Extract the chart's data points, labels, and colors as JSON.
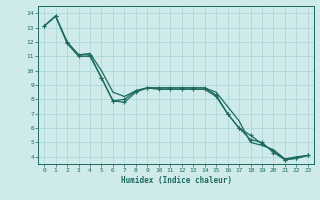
{
  "xlabel": "Humidex (Indice chaleur)",
  "bg_color": "#ceeaea",
  "line_color": "#1e6b5e",
  "grid_color": "#a8d4d4",
  "xlim": [
    -0.5,
    23.5
  ],
  "ylim": [
    3.5,
    14.5
  ],
  "xticks": [
    0,
    1,
    2,
    3,
    4,
    5,
    6,
    7,
    8,
    9,
    10,
    11,
    12,
    13,
    14,
    15,
    16,
    17,
    18,
    19,
    20,
    21,
    22,
    23
  ],
  "yticks": [
    4,
    5,
    6,
    7,
    8,
    9,
    10,
    11,
    12,
    13,
    14
  ],
  "line1_x": [
    0,
    1,
    2,
    3,
    4,
    5,
    6,
    7,
    8,
    9,
    10,
    11,
    12,
    13,
    14,
    15,
    16,
    17,
    18,
    19,
    20,
    21,
    22,
    23
  ],
  "line1_y": [
    13.1,
    13.8,
    12.0,
    11.1,
    11.1,
    9.5,
    7.9,
    7.8,
    8.5,
    8.8,
    8.8,
    8.8,
    8.8,
    8.8,
    8.8,
    8.3,
    7.0,
    6.0,
    5.5,
    4.9,
    4.4,
    3.8,
    3.9,
    4.1
  ],
  "line2_x": [
    0,
    1,
    2,
    3,
    4,
    5,
    6,
    7,
    8,
    9,
    10,
    11,
    12,
    13,
    14,
    15,
    16,
    17,
    18,
    19,
    20,
    21,
    22,
    23
  ],
  "line2_y": [
    13.1,
    13.8,
    11.9,
    11.0,
    11.0,
    9.5,
    7.9,
    8.0,
    8.6,
    8.8,
    8.7,
    8.7,
    8.7,
    8.7,
    8.7,
    8.2,
    7.0,
    6.0,
    5.2,
    5.0,
    4.3,
    3.8,
    3.9,
    4.1
  ],
  "line3_x": [
    0,
    1,
    2,
    3,
    4,
    5,
    6,
    7,
    8,
    9,
    10,
    11,
    12,
    13,
    14,
    15,
    16,
    17,
    18,
    19,
    20,
    21,
    22,
    23
  ],
  "line3_y": [
    13.1,
    13.8,
    12.0,
    11.1,
    11.2,
    10.0,
    8.5,
    8.2,
    8.6,
    8.8,
    8.8,
    8.8,
    8.8,
    8.8,
    8.8,
    8.5,
    7.5,
    6.5,
    5.0,
    4.8,
    4.5,
    3.85,
    4.0,
    4.1
  ]
}
